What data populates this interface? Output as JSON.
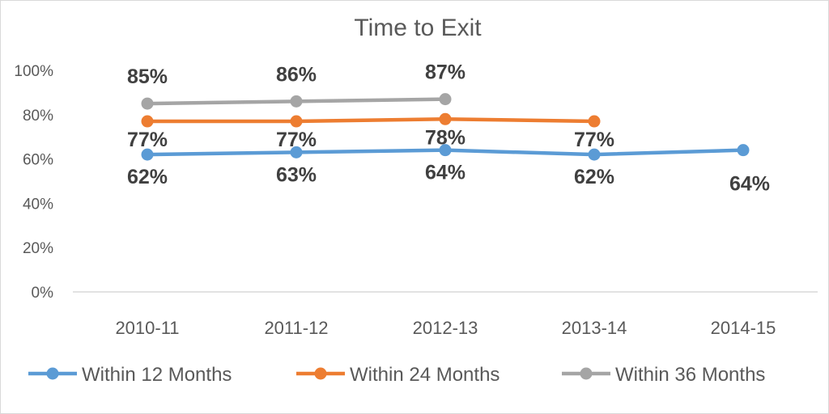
{
  "chart_data": {
    "type": "line",
    "title": "Time to Exit",
    "xlabel": "",
    "ylabel": "",
    "categories": [
      "2010-11",
      "2011-12",
      "2012-13",
      "2013-14",
      "2014-15"
    ],
    "ylim": [
      0,
      100
    ],
    "yticks": [
      "0%",
      "20%",
      "40%",
      "60%",
      "80%",
      "100%"
    ],
    "grid": false,
    "legend_position": "bottom",
    "series": [
      {
        "name": "Within 12 Months",
        "color": "#5b9bd5",
        "values": [
          62,
          63,
          64,
          62,
          64
        ],
        "labels": [
          "62%",
          "63%",
          "64%",
          "62%",
          "64%"
        ]
      },
      {
        "name": "Within 24 Months",
        "color": "#ed7d31",
        "values": [
          77,
          77,
          78,
          77,
          null
        ],
        "labels": [
          "77%",
          "77%",
          "78%",
          "77%",
          null
        ]
      },
      {
        "name": "Within 36 Months",
        "color": "#a5a5a5",
        "values": [
          85,
          86,
          87,
          null,
          null
        ],
        "labels": [
          "85%",
          "86%",
          "87%",
          null,
          null
        ]
      }
    ]
  }
}
